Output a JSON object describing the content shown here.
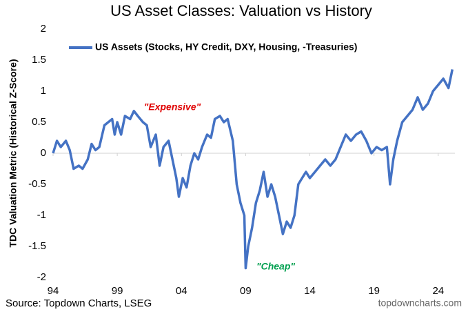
{
  "chart_data": {
    "type": "line",
    "title": "US Asset Classes: Valuation vs History",
    "y_label": "TDC Valuation Metric (Historical Z-Score)",
    "source": "Source: Topdown Charts, LSEG",
    "watermark": "topdowncharts.com",
    "legend_position": "upper left",
    "annotations": [
      {
        "text": "\"Expensive\"",
        "color": "#e00000"
      },
      {
        "text": "\"Cheap\"",
        "color": "#00a050"
      }
    ],
    "xlim": [
      1994,
      2025.3
    ],
    "xticks": [
      {
        "value": 1994,
        "label": "94"
      },
      {
        "value": 1999,
        "label": "99"
      },
      {
        "value": 2004,
        "label": "04"
      },
      {
        "value": 2009,
        "label": "09"
      },
      {
        "value": 2014,
        "label": "14"
      },
      {
        "value": 2019,
        "label": "19"
      },
      {
        "value": 2024,
        "label": "24"
      }
    ],
    "ylim": [
      -2,
      2
    ],
    "yticks": [
      -2,
      -1.5,
      -1,
      -0.5,
      0,
      0.5,
      1,
      1.5,
      2
    ],
    "x": [
      1994.0,
      1994.3,
      1994.6,
      1995.0,
      1995.3,
      1995.6,
      1996.0,
      1996.3,
      1996.7,
      1997.0,
      1997.3,
      1997.6,
      1998.0,
      1998.3,
      1998.6,
      1998.8,
      1999.0,
      1999.3,
      1999.6,
      2000.0,
      2000.3,
      2000.6,
      2001.0,
      2001.3,
      2001.6,
      2002.0,
      2002.3,
      2002.6,
      2003.0,
      2003.3,
      2003.6,
      2003.8,
      2004.1,
      2004.4,
      2004.7,
      2005.0,
      2005.3,
      2005.6,
      2006.0,
      2006.3,
      2006.6,
      2007.0,
      2007.3,
      2007.6,
      2008.0,
      2008.3,
      2008.6,
      2008.9,
      2009.0,
      2009.2,
      2009.5,
      2009.8,
      2010.1,
      2010.4,
      2010.7,
      2011.0,
      2011.3,
      2011.6,
      2011.9,
      2012.2,
      2012.5,
      2012.8,
      2013.1,
      2013.4,
      2013.7,
      2014.0,
      2014.4,
      2014.8,
      2015.2,
      2015.6,
      2016.0,
      2016.4,
      2016.8,
      2017.2,
      2017.6,
      2018.0,
      2018.4,
      2018.8,
      2019.2,
      2019.6,
      2020.0,
      2020.25,
      2020.5,
      2020.8,
      2021.2,
      2021.6,
      2022.0,
      2022.4,
      2022.8,
      2023.2,
      2023.6,
      2024.0,
      2024.4,
      2024.8,
      2025.1
    ],
    "series": [
      {
        "name": "US Assets (Stocks, HY Credit, DXY, Housing, -Treasuries)",
        "color": "#4472c4",
        "values": [
          0.0,
          0.2,
          0.1,
          0.2,
          0.05,
          -0.25,
          -0.2,
          -0.25,
          -0.1,
          0.15,
          0.05,
          0.1,
          0.45,
          0.5,
          0.55,
          0.3,
          0.5,
          0.3,
          0.6,
          0.55,
          0.68,
          0.6,
          0.5,
          0.45,
          0.1,
          0.3,
          -0.2,
          0.1,
          0.2,
          -0.1,
          -0.4,
          -0.7,
          -0.4,
          -0.55,
          -0.2,
          0.0,
          -0.1,
          0.1,
          0.3,
          0.25,
          0.55,
          0.6,
          0.5,
          0.55,
          0.2,
          -0.5,
          -0.8,
          -1.0,
          -1.85,
          -1.5,
          -1.2,
          -0.8,
          -0.6,
          -0.3,
          -0.7,
          -0.5,
          -0.7,
          -1.0,
          -1.3,
          -1.1,
          -1.2,
          -1.0,
          -0.5,
          -0.4,
          -0.3,
          -0.4,
          -0.3,
          -0.2,
          -0.1,
          -0.2,
          -0.1,
          0.1,
          0.3,
          0.2,
          0.3,
          0.35,
          0.2,
          0.0,
          0.1,
          0.05,
          0.1,
          -0.5,
          -0.1,
          0.2,
          0.5,
          0.6,
          0.7,
          0.9,
          0.7,
          0.8,
          1.0,
          1.1,
          1.2,
          1.05,
          1.35
        ]
      }
    ]
  }
}
